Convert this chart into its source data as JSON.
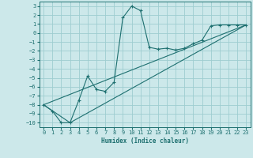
{
  "xlabel": "Humidex (Indice chaleur)",
  "bg_color": "#cce8ea",
  "grid_color": "#9ecdd0",
  "line_color": "#1e7070",
  "xlim": [
    -0.5,
    23.5
  ],
  "ylim": [
    -10.5,
    3.5
  ],
  "yticks": [
    3,
    2,
    1,
    0,
    -1,
    -2,
    -3,
    -4,
    -5,
    -6,
    -7,
    -8,
    -9,
    -10
  ],
  "xticks": [
    0,
    1,
    2,
    3,
    4,
    5,
    6,
    7,
    8,
    9,
    10,
    11,
    12,
    13,
    14,
    15,
    16,
    17,
    18,
    19,
    20,
    21,
    22,
    23
  ],
  "series1_x": [
    0,
    1,
    2,
    3,
    4,
    5,
    6,
    7,
    8,
    9,
    10,
    11,
    12,
    13,
    14,
    15,
    16,
    17,
    18,
    19,
    20,
    21,
    22,
    23
  ],
  "series1_y": [
    -8.0,
    -8.7,
    -10.0,
    -10.0,
    -7.5,
    -4.8,
    -6.3,
    -6.5,
    -5.5,
    1.7,
    3.0,
    2.5,
    -1.6,
    -1.8,
    -1.7,
    -1.9,
    -1.7,
    -1.2,
    -0.8,
    0.8,
    0.9,
    0.9,
    0.9,
    0.9
  ],
  "series2_x": [
    0,
    23
  ],
  "series2_y": [
    -8.0,
    0.9
  ],
  "series3_x": [
    0,
    3,
    23
  ],
  "series3_y": [
    -8.0,
    -10.0,
    0.9
  ]
}
